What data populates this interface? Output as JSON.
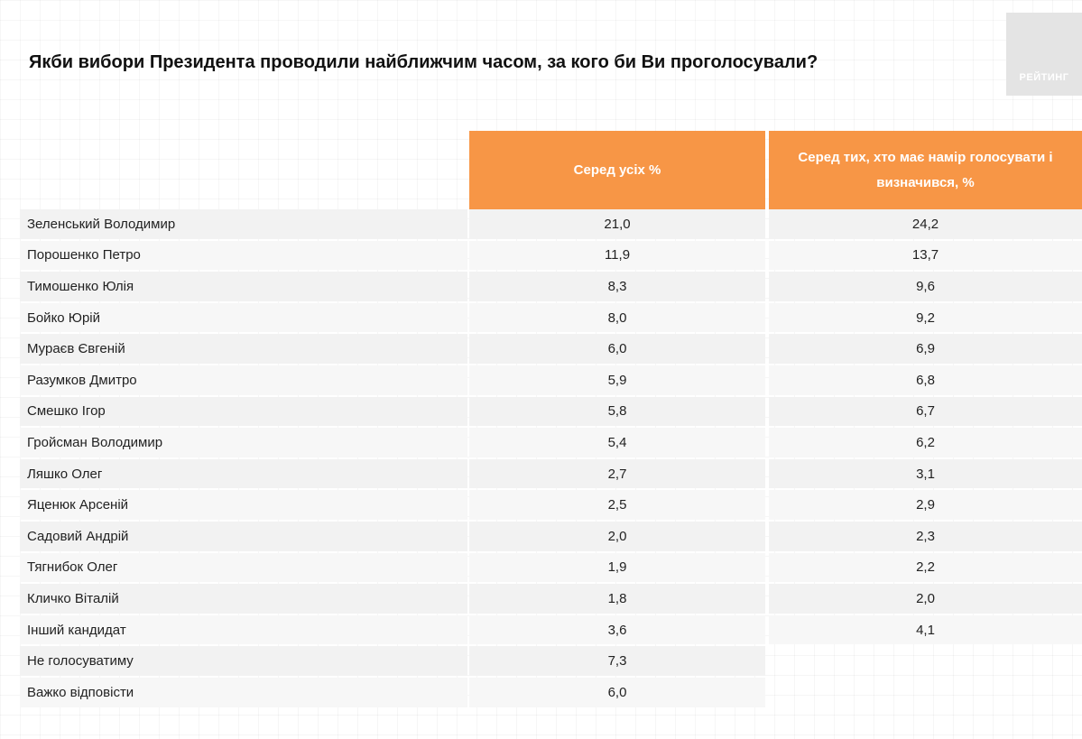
{
  "title": "Якби вибори Президента проводили найближчим часом, за кого би Ви проголосували?",
  "logo_text": "РЕЙТИНГ",
  "colors": {
    "header_bg": "#f79646",
    "row_bg": "#f2f2f2"
  },
  "table": {
    "headers": {
      "all": "Серед усіх %",
      "decided": "Серед тих, хто має намір голосувати і визначився, %"
    },
    "rows": [
      {
        "name": "Зеленський Володимир",
        "all": "21,0",
        "decided": "24,2"
      },
      {
        "name": "Порошенко Петро",
        "all": "11,9",
        "decided": "13,7"
      },
      {
        "name": "Тимошенко Юлія",
        "all": "8,3",
        "decided": "9,6"
      },
      {
        "name": "Бойко Юрій",
        "all": "8,0",
        "decided": "9,2"
      },
      {
        "name": "Мураєв Євгеній",
        "all": "6,0",
        "decided": "6,9"
      },
      {
        "name": "Разумков Дмитро",
        "all": "5,9",
        "decided": "6,8"
      },
      {
        "name": "Смешко Ігор",
        "all": "5,8",
        "decided": "6,7"
      },
      {
        "name": "Гройсман Володимир",
        "all": "5,4",
        "decided": "6,2"
      },
      {
        "name": "Ляшко Олег",
        "all": "2,7",
        "decided": "3,1"
      },
      {
        "name": "Яценюк Арсеній",
        "all": "2,5",
        "decided": "2,9"
      },
      {
        "name": "Садовий Андрій",
        "all": "2,0",
        "decided": "2,3"
      },
      {
        "name": "Тягнибок Олег",
        "all": "1,9",
        "decided": "2,2"
      },
      {
        "name": "Кличко Віталій",
        "all": "1,8",
        "decided": "2,0"
      },
      {
        "name": "Інший кандидат",
        "all": "3,6",
        "decided": "4,1"
      },
      {
        "name": "Не голосуватиму",
        "all": "7,3",
        "decided": null
      },
      {
        "name": "Важко відповісти",
        "all": "6,0",
        "decided": null
      }
    ]
  }
}
